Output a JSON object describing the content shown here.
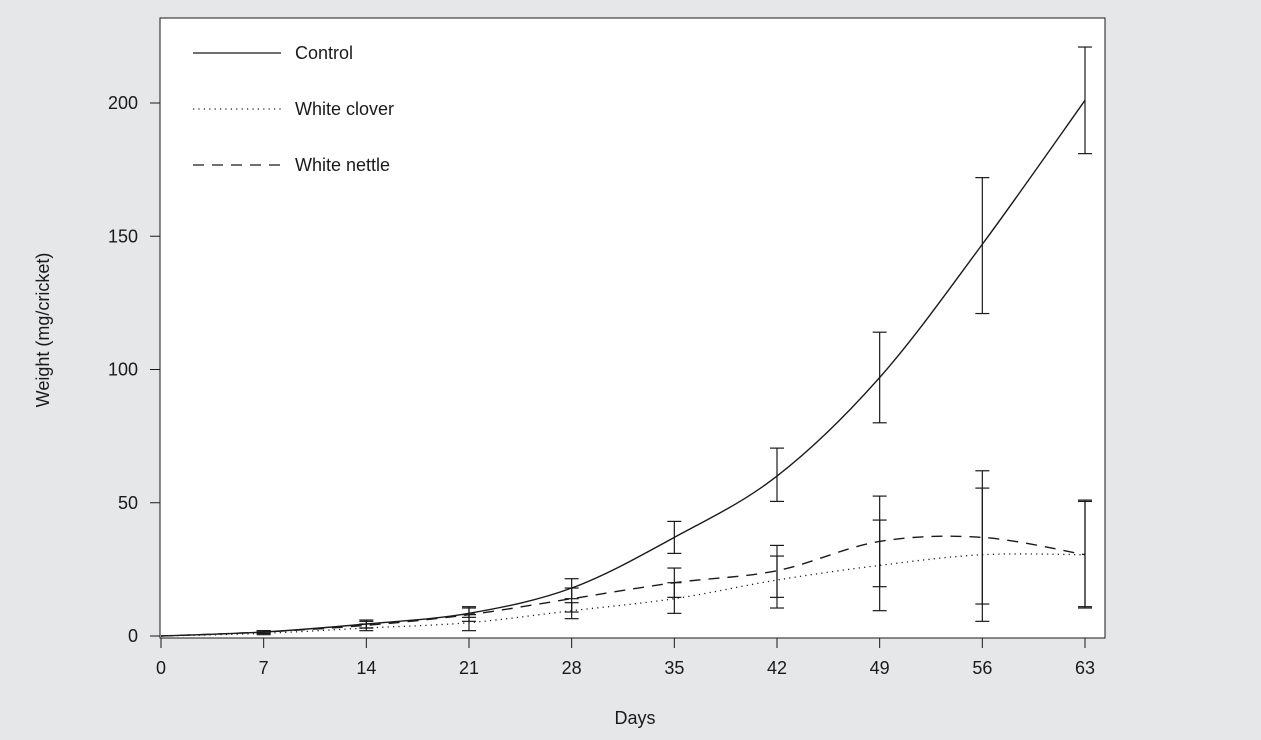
{
  "colors": {
    "background": "#e6e7e8",
    "plot_background": "#ffffff",
    "ink": "#1a1a1a"
  },
  "chart_data": {
    "type": "line",
    "xlabel": "Days",
    "ylabel": "Weight (mg/cricket)",
    "xlim": [
      0,
      63
    ],
    "ylim": [
      0,
      200
    ],
    "xticks": [
      0,
      7,
      14,
      21,
      28,
      35,
      42,
      49,
      56,
      63
    ],
    "yticks": [
      0,
      50,
      100,
      150,
      200
    ],
    "grid": false,
    "legend_position": "top-left",
    "x": [
      0,
      7,
      14,
      21,
      28,
      35,
      42,
      49,
      56,
      63
    ],
    "series": [
      {
        "name": "Control",
        "line_style": "solid",
        "values": [
          0,
          1.5,
          4.5,
          8.5,
          18,
          37,
          60,
          97,
          147,
          201
        ],
        "error_low": [
          0,
          1,
          3,
          7,
          14,
          31,
          50.5,
          80,
          121,
          181
        ],
        "error_high": [
          0,
          2,
          6,
          11,
          21.5,
          43,
          70.5,
          114,
          172,
          221
        ]
      },
      {
        "name": "White clover",
        "line_style": "dotted",
        "values": [
          0,
          1,
          3,
          5,
          9.5,
          14,
          21,
          26.5,
          30.5,
          30.5
        ],
        "error_low": [
          0,
          0.5,
          2,
          2,
          6.5,
          8.5,
          10.5,
          9.5,
          5.5,
          11
        ],
        "error_high": [
          0,
          1.5,
          4.5,
          8,
          12.5,
          20,
          30,
          43.5,
          55.5,
          51
        ]
      },
      {
        "name": "White nettle",
        "line_style": "dashed",
        "values": [
          0,
          1.5,
          4,
          8,
          14,
          20,
          24.5,
          35.5,
          37,
          30.5
        ],
        "error_low": [
          0,
          1,
          3,
          5.5,
          9,
          14.5,
          14.5,
          18.5,
          12,
          10.5
        ],
        "error_high": [
          0,
          2,
          5.5,
          10.5,
          18,
          25.5,
          34,
          52.5,
          62,
          50.5
        ]
      }
    ]
  }
}
